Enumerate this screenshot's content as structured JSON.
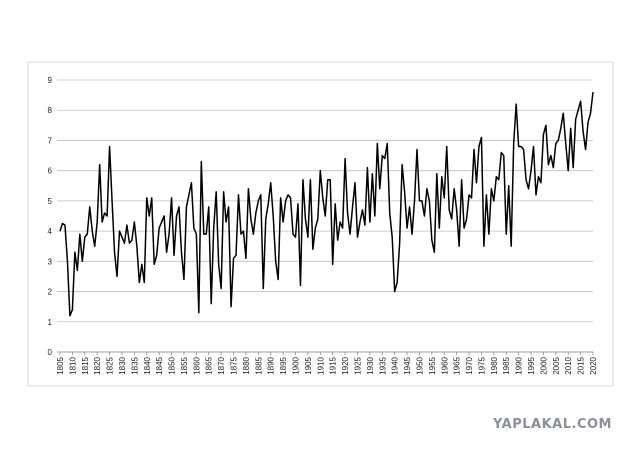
{
  "chart_data": {
    "type": "line",
    "x": [
      1805,
      1806,
      1807,
      1808,
      1809,
      1810,
      1811,
      1812,
      1813,
      1814,
      1815,
      1816,
      1817,
      1818,
      1819,
      1820,
      1821,
      1822,
      1823,
      1824,
      1825,
      1826,
      1827,
      1828,
      1829,
      1830,
      1831,
      1832,
      1833,
      1834,
      1835,
      1836,
      1837,
      1838,
      1839,
      1840,
      1841,
      1842,
      1843,
      1844,
      1845,
      1846,
      1847,
      1848,
      1849,
      1850,
      1851,
      1852,
      1853,
      1854,
      1855,
      1856,
      1857,
      1858,
      1859,
      1860,
      1861,
      1862,
      1863,
      1864,
      1865,
      1866,
      1867,
      1868,
      1869,
      1870,
      1871,
      1872,
      1873,
      1874,
      1875,
      1876,
      1877,
      1878,
      1879,
      1880,
      1881,
      1882,
      1883,
      1884,
      1885,
      1886,
      1887,
      1888,
      1889,
      1890,
      1891,
      1892,
      1893,
      1894,
      1895,
      1896,
      1897,
      1898,
      1899,
      1900,
      1901,
      1902,
      1903,
      1904,
      1905,
      1906,
      1907,
      1908,
      1909,
      1910,
      1911,
      1912,
      1913,
      1914,
      1915,
      1916,
      1917,
      1918,
      1919,
      1920,
      1921,
      1922,
      1923,
      1924,
      1925,
      1926,
      1927,
      1928,
      1929,
      1930,
      1931,
      1932,
      1933,
      1934,
      1935,
      1936,
      1937,
      1938,
      1939,
      1940,
      1941,
      1942,
      1943,
      1944,
      1945,
      1946,
      1947,
      1948,
      1949,
      1950,
      1951,
      1952,
      1953,
      1954,
      1955,
      1956,
      1957,
      1958,
      1959,
      1960,
      1961,
      1962,
      1963,
      1964,
      1965,
      1966,
      1967,
      1968,
      1969,
      1970,
      1971,
      1972,
      1973,
      1974,
      1975,
      1976,
      1977,
      1978,
      1979,
      1980,
      1981,
      1982,
      1983,
      1984,
      1985,
      1986,
      1987,
      1988,
      1989,
      1990,
      1991,
      1992,
      1993,
      1994,
      1995,
      1996,
      1997,
      1998,
      1999,
      2000,
      2001,
      2002,
      2003,
      2004,
      2005,
      2006,
      2007,
      2008,
      2009,
      2010,
      2011,
      2012,
      2013,
      2014,
      2015,
      2016,
      2017,
      2018,
      2019,
      2020
    ],
    "values": [
      4.0,
      4.25,
      4.2,
      3.0,
      1.2,
      1.4,
      3.3,
      2.7,
      3.9,
      3.0,
      3.8,
      3.9,
      4.8,
      4.0,
      3.5,
      4.3,
      6.2,
      4.3,
      4.6,
      4.5,
      6.8,
      5.0,
      3.3,
      2.5,
      4.0,
      3.8,
      3.6,
      4.2,
      3.6,
      3.7,
      4.3,
      3.5,
      2.3,
      2.9,
      2.3,
      5.1,
      4.5,
      5.1,
      2.9,
      3.2,
      4.1,
      4.3,
      4.5,
      3.3,
      3.9,
      5.1,
      3.2,
      4.5,
      4.8,
      3.3,
      2.4,
      4.8,
      5.2,
      5.6,
      4.1,
      3.9,
      1.3,
      6.3,
      3.9,
      3.9,
      4.8,
      1.6,
      4.1,
      5.3,
      2.9,
      2.1,
      5.3,
      4.3,
      4.8,
      1.5,
      3.1,
      3.2,
      5.2,
      3.9,
      4.0,
      3.1,
      5.4,
      4.4,
      3.9,
      4.6,
      5.0,
      5.2,
      2.1,
      4.4,
      4.9,
      5.6,
      4.5,
      3.0,
      2.4,
      5.1,
      4.3,
      5.0,
      5.2,
      5.1,
      3.9,
      3.8,
      4.9,
      2.2,
      5.7,
      4.4,
      3.8,
      5.7,
      3.4,
      4.1,
      4.4,
      6.0,
      5.1,
      4.5,
      5.7,
      5.7,
      2.9,
      4.9,
      3.7,
      4.3,
      4.1,
      6.4,
      4.6,
      3.9,
      4.8,
      5.6,
      3.8,
      4.3,
      4.7,
      4.2,
      6.1,
      4.3,
      5.9,
      4.5,
      6.9,
      5.4,
      6.5,
      6.4,
      6.9,
      4.6,
      3.8,
      2.0,
      2.3,
      3.6,
      6.2,
      5.3,
      4.1,
      4.8,
      3.9,
      5.0,
      6.7,
      5.0,
      5.0,
      4.5,
      5.4,
      5.0,
      3.7,
      3.3,
      5.9,
      4.1,
      5.8,
      5.1,
      6.8,
      4.7,
      4.4,
      5.4,
      4.7,
      3.5,
      5.7,
      4.1,
      4.4,
      5.2,
      5.1,
      6.7,
      5.6,
      6.8,
      7.1,
      3.5,
      5.2,
      3.9,
      5.4,
      5.0,
      5.8,
      5.7,
      6.6,
      6.5,
      3.9,
      5.5,
      3.5,
      6.9,
      8.2,
      6.8,
      6.8,
      6.7,
      5.7,
      5.4,
      6.0,
      6.8,
      5.2,
      5.8,
      5.6,
      7.2,
      7.5,
      6.2,
      6.5,
      6.1,
      6.9,
      7.0,
      7.4,
      7.9,
      6.9,
      6.0,
      7.4,
      6.1,
      7.7,
      8.0,
      8.3,
      7.3,
      6.7,
      7.6,
      7.9,
      8.6
    ],
    "color": "#000000",
    "xlim": [
      1805,
      2020
    ],
    "xticks": [
      1805,
      1810,
      1815,
      1820,
      1825,
      1830,
      1835,
      1840,
      1845,
      1850,
      1855,
      1860,
      1865,
      1870,
      1875,
      1880,
      1885,
      1890,
      1895,
      1900,
      1905,
      1910,
      1915,
      1920,
      1925,
      1930,
      1935,
      1940,
      1945,
      1950,
      1955,
      1960,
      1965,
      1970,
      1975,
      1980,
      1985,
      1990,
      1995,
      2000,
      2005,
      2010,
      2015,
      2020
    ],
    "ylim": [
      0,
      9
    ],
    "yticks": [
      0,
      1,
      2,
      3,
      4,
      5,
      6,
      7,
      8,
      9
    ],
    "grid": true,
    "watermark": "YAPLAKAL.COM"
  }
}
